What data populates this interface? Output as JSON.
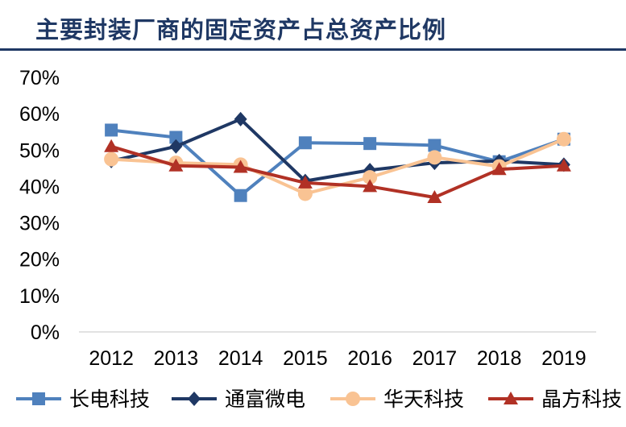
{
  "chart_data": {
    "type": "line",
    "title": "主要封装厂商的固定资产占总资产比例",
    "xlabel": "",
    "ylabel": "",
    "categories": [
      "2012",
      "2013",
      "2014",
      "2015",
      "2016",
      "2017",
      "2018",
      "2019"
    ],
    "ylim": [
      0,
      0.7
    ],
    "yticks": [
      "0%",
      "10%",
      "20%",
      "30%",
      "40%",
      "50%",
      "60%",
      "70%"
    ],
    "grid": false,
    "legend_position": "bottom",
    "series": [
      {
        "name": "长电科技",
        "color": "#4f81bd",
        "marker": "square",
        "values": [
          0.555,
          0.535,
          0.375,
          0.52,
          0.518,
          0.513,
          0.468,
          0.53
        ]
      },
      {
        "name": "通富微电",
        "color": "#1f3864",
        "marker": "diamond",
        "values": [
          0.47,
          0.51,
          0.585,
          0.415,
          0.445,
          0.465,
          0.47,
          0.46
        ]
      },
      {
        "name": "华天科技",
        "color": "#f9c393",
        "marker": "circle",
        "values": [
          0.475,
          0.465,
          0.46,
          0.38,
          0.425,
          0.48,
          0.455,
          0.53
        ]
      },
      {
        "name": "晶方科技",
        "color": "#b13125",
        "marker": "triangle",
        "values": [
          0.51,
          0.457,
          0.453,
          0.41,
          0.4,
          0.37,
          0.447,
          0.457
        ]
      }
    ]
  }
}
